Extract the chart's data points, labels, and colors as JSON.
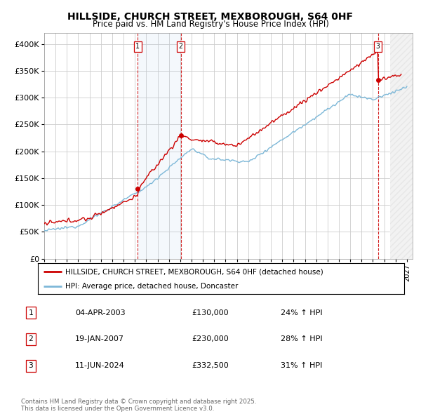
{
  "title": "HILLSIDE, CHURCH STREET, MEXBOROUGH, S64 0HF",
  "subtitle": "Price paid vs. HM Land Registry's House Price Index (HPI)",
  "legend_line1": "HILLSIDE, CHURCH STREET, MEXBOROUGH, S64 0HF (detached house)",
  "legend_line2": "HPI: Average price, detached house, Doncaster",
  "hpi_color": "#7db8d8",
  "price_color": "#cc0000",
  "annotation_color": "#cc0000",
  "background_color": "#ffffff",
  "grid_color": "#cccccc",
  "ylim": [
    0,
    420000
  ],
  "yticks": [
    0,
    50000,
    100000,
    150000,
    200000,
    250000,
    300000,
    350000,
    400000
  ],
  "xlim_start": 1995.0,
  "xlim_end": 2027.5,
  "sale_events": [
    {
      "label": "1",
      "date_year": 2003.25,
      "price": 130000,
      "date_str": "04-APR-2003",
      "hpi_pct": "24%"
    },
    {
      "label": "2",
      "date_year": 2007.05,
      "price": 230000,
      "date_str": "19-JAN-2007",
      "hpi_pct": "28%"
    },
    {
      "label": "3",
      "date_year": 2024.44,
      "price": 332500,
      "date_str": "11-JUN-2024",
      "hpi_pct": "31%"
    }
  ],
  "footnote": "Contains HM Land Registry data © Crown copyright and database right 2025.\nThis data is licensed under the Open Government Licence v3.0.",
  "table_rows": [
    {
      "label": "1",
      "date": "04-APR-2003",
      "price": "£130,000",
      "hpi": "24% ↑ HPI"
    },
    {
      "label": "2",
      "date": "19-JAN-2007",
      "price": "£230,000",
      "hpi": "28% ↑ HPI"
    },
    {
      "label": "3",
      "date": "11-JUN-2024",
      "price": "£332,500",
      "hpi": "31% ↑ HPI"
    }
  ]
}
